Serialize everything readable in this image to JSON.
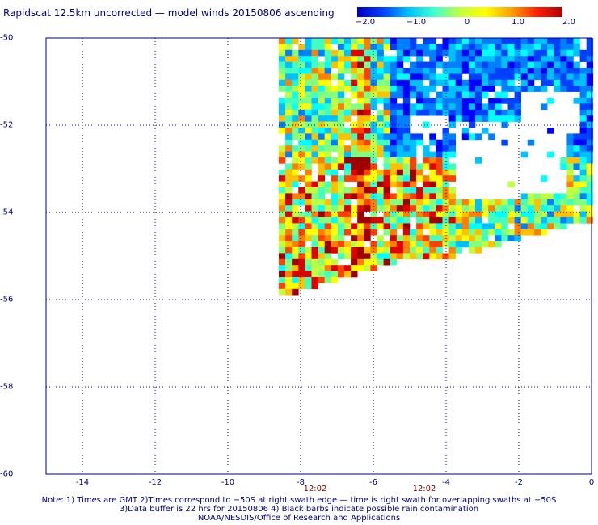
{
  "title": "Rapidscat 12.5km uncorrected — model winds 20150806 ascending",
  "colorbar": {
    "labels": [
      "−2.0",
      "−1.0",
      "0",
      "1.0",
      "2.0"
    ],
    "stops": [
      "#0000c0",
      "#0040ff",
      "#00c0ff",
      "#40ffd0",
      "#c0ff40",
      "#ffff00",
      "#ffa000",
      "#ff2000",
      "#b00000"
    ]
  },
  "map": {
    "lat_labels": [
      "-50",
      "-52",
      "-54",
      "-56",
      "-58",
      "-60"
    ],
    "lon_labels": [
      "-14",
      "-12",
      "-10",
      "-8",
      "-6",
      "-4",
      "-2",
      "0"
    ],
    "lat_range": [
      -60,
      -50
    ],
    "lon_range": [
      -15,
      0
    ],
    "grid_color": "#000080"
  },
  "swath_times": [
    {
      "label": "12:02",
      "lon": -7.6
    },
    {
      "label": "12:02",
      "lon": -4.6
    }
  ],
  "notes": [
    "Note: 1) Times are GMT 2)Times correspond to −50S at right swath edge — time is right swath for overlapping swaths at −50S",
    "3)Data buffer is 22 hrs for 20150806 4) Black barbs indicate possible rain contamination",
    "NOAA/NESDIS/Office of Research and Applications"
  ]
}
